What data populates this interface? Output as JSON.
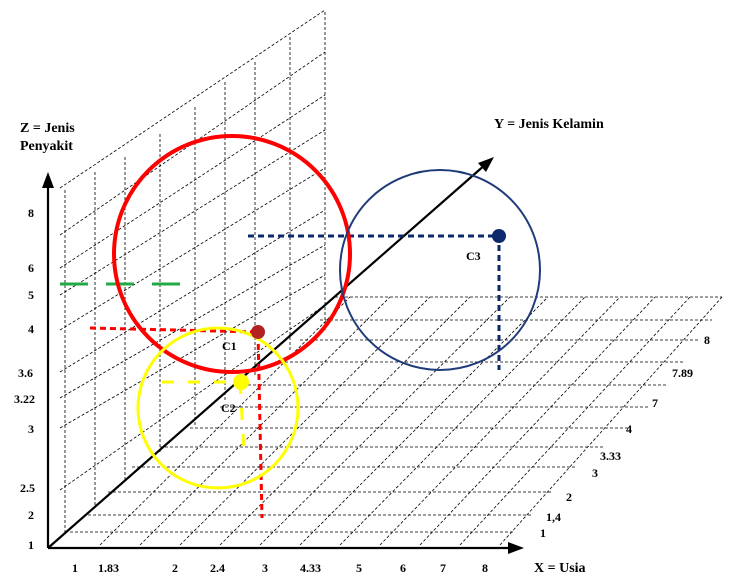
{
  "axes": {
    "z_title_line1": "Z = Jenis",
    "z_title_line2": "Penyakit",
    "y_title": "Y = Jenis Kelamin",
    "x_title": "X = Usia"
  },
  "x_ticks": [
    "1",
    "1.83",
    "2",
    "2.4",
    "3",
    "4.33",
    "5",
    "6",
    "7",
    "8"
  ],
  "z_ticks": [
    "1",
    "2",
    "2.5",
    "3",
    "3.22",
    "3.6",
    "4",
    "5",
    "6",
    "8"
  ],
  "y_ticks": [
    "1",
    "1,4",
    "2",
    "3",
    "3.33",
    "4",
    "7",
    "7.89",
    "8"
  ],
  "centroids": {
    "c1": {
      "label": "C1",
      "color": "#b22222",
      "circle_color": "#ff0000"
    },
    "c2": {
      "label": "C2",
      "color": "#ffff00",
      "circle_color": "#ffff00"
    },
    "c3": {
      "label": "C3",
      "color": "#0b2a6b",
      "circle_color": "#1f3b7a"
    }
  },
  "colors": {
    "green_marks": "#22aa44",
    "axis": "#000000"
  }
}
